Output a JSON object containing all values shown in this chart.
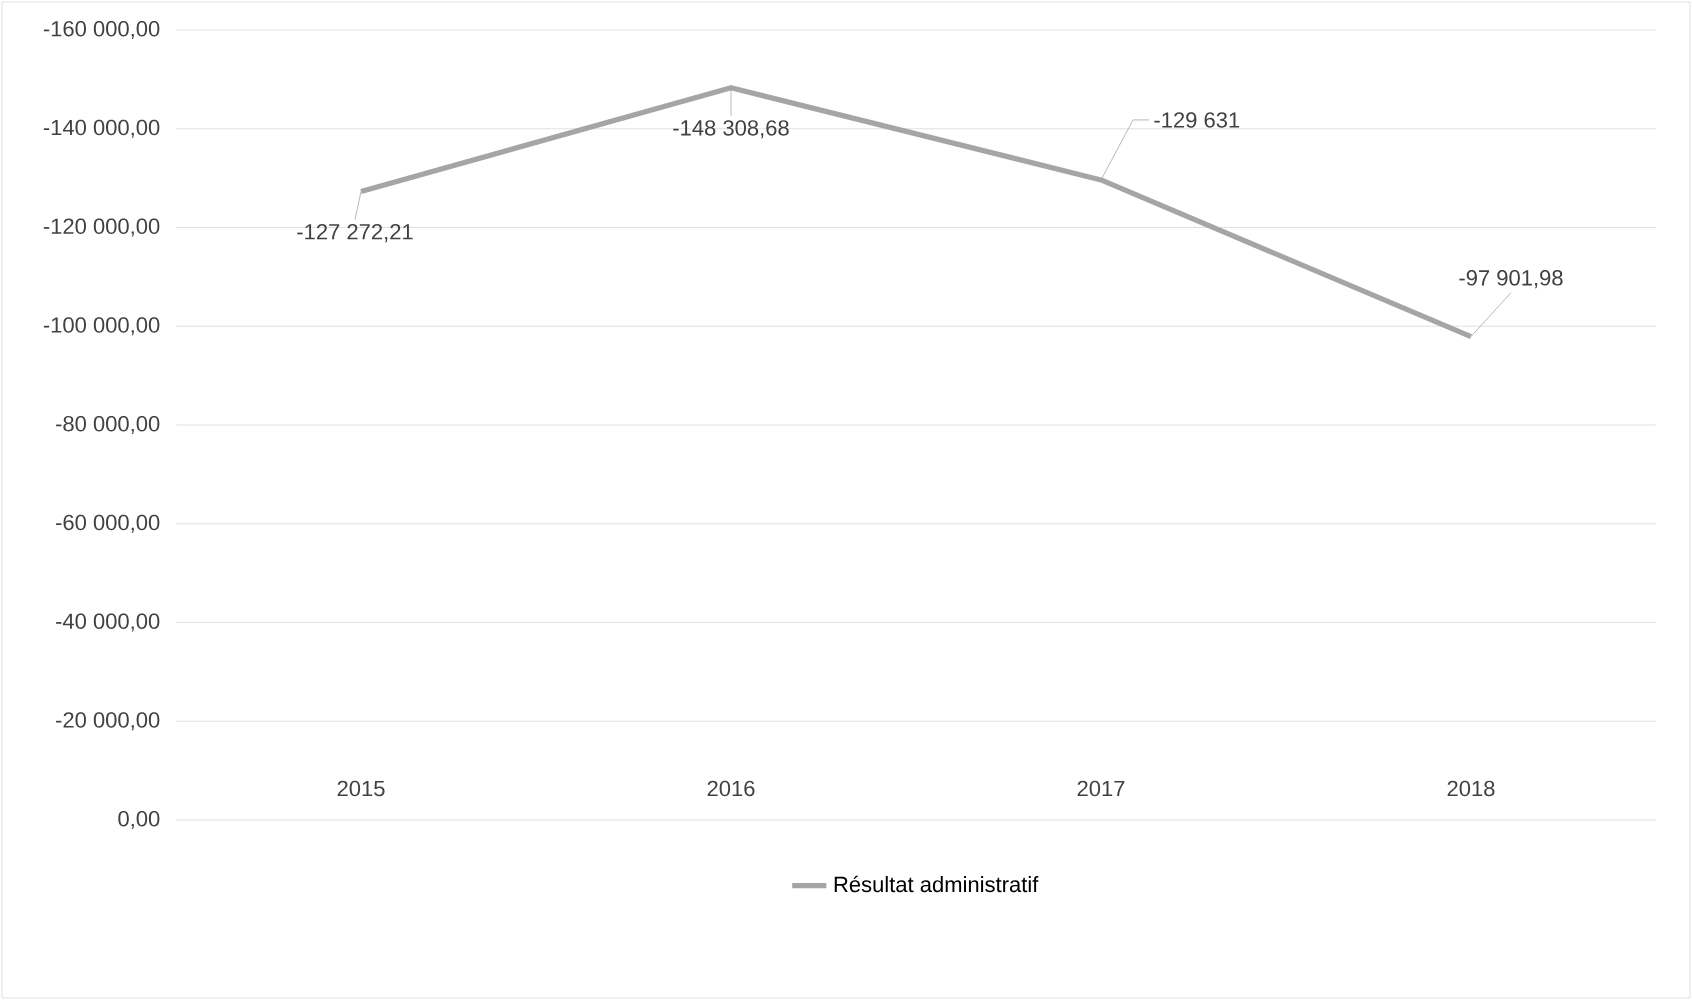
{
  "chart_data": {
    "type": "line",
    "categories": [
      "2015",
      "2016",
      "2017",
      "2018"
    ],
    "series": [
      {
        "name": "Résultat administratif",
        "color": "#a5a5a5",
        "values": [
          -127272.21,
          -148308.68,
          -129631,
          -97901.98
        ]
      }
    ],
    "value_labels": [
      "-127 272,21",
      "-148 308,68",
      "-129 631",
      "-97 901,98"
    ],
    "ylim": [
      0,
      -160000
    ],
    "yticks": [
      {
        "value": 0,
        "label": "0,00"
      },
      {
        "value": -20000,
        "label": "-20 000,00"
      },
      {
        "value": -40000,
        "label": "-40 000,00"
      },
      {
        "value": -60000,
        "label": "-60 000,00"
      },
      {
        "value": -80000,
        "label": "-80 000,00"
      },
      {
        "value": -100000,
        "label": "-100 000,00"
      },
      {
        "value": -120000,
        "label": "-120 000,00"
      },
      {
        "value": -140000,
        "label": "-140 000,00"
      },
      {
        "value": -160000,
        "label": "-160 000,00"
      }
    ],
    "grid": "y",
    "legend": "bottom",
    "marker": "none",
    "line_style": "solid"
  }
}
